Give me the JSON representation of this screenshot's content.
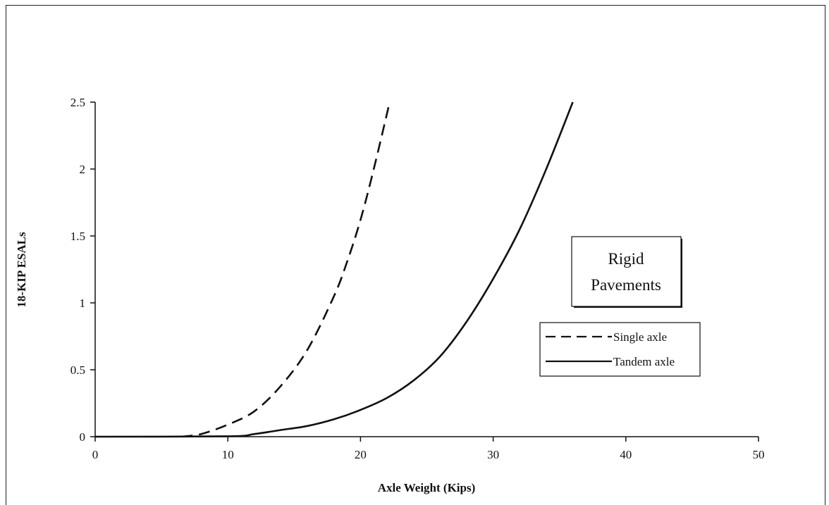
{
  "chart_data": {
    "type": "line",
    "title": "",
    "xlabel": "Axle Weight (Kips)",
    "ylabel": "18-KIP ESALs",
    "xlim": [
      0,
      50
    ],
    "ylim": [
      0,
      2.5
    ],
    "x_ticks": [
      "0",
      "10",
      "20",
      "30",
      "40",
      "50"
    ],
    "y_ticks": [
      "0",
      "0.5",
      "1",
      "1.5",
      "2",
      "2.5"
    ],
    "grid": false,
    "annotation_lines": [
      "Rigid",
      "Pavements"
    ],
    "legend_position": "right",
    "series": [
      {
        "name": "Single axle",
        "style": "dashed",
        "color": "#111111",
        "x": [
          6.5,
          8,
          10,
          12,
          14,
          16,
          18,
          19,
          20,
          21,
          22.2
        ],
        "y": [
          0.0,
          0.02,
          0.09,
          0.19,
          0.38,
          0.65,
          1.05,
          1.31,
          1.62,
          2.0,
          2.5
        ]
      },
      {
        "name": "Tandem axle",
        "style": "solid",
        "color": "#111111",
        "x": [
          0,
          10,
          12,
          14,
          16,
          18,
          20,
          22,
          24,
          26,
          28,
          30,
          32,
          34,
          36
        ],
        "y": [
          0.0,
          0.003,
          0.02,
          0.05,
          0.08,
          0.13,
          0.2,
          0.29,
          0.42,
          0.6,
          0.86,
          1.18,
          1.55,
          2.0,
          2.5
        ]
      }
    ]
  }
}
